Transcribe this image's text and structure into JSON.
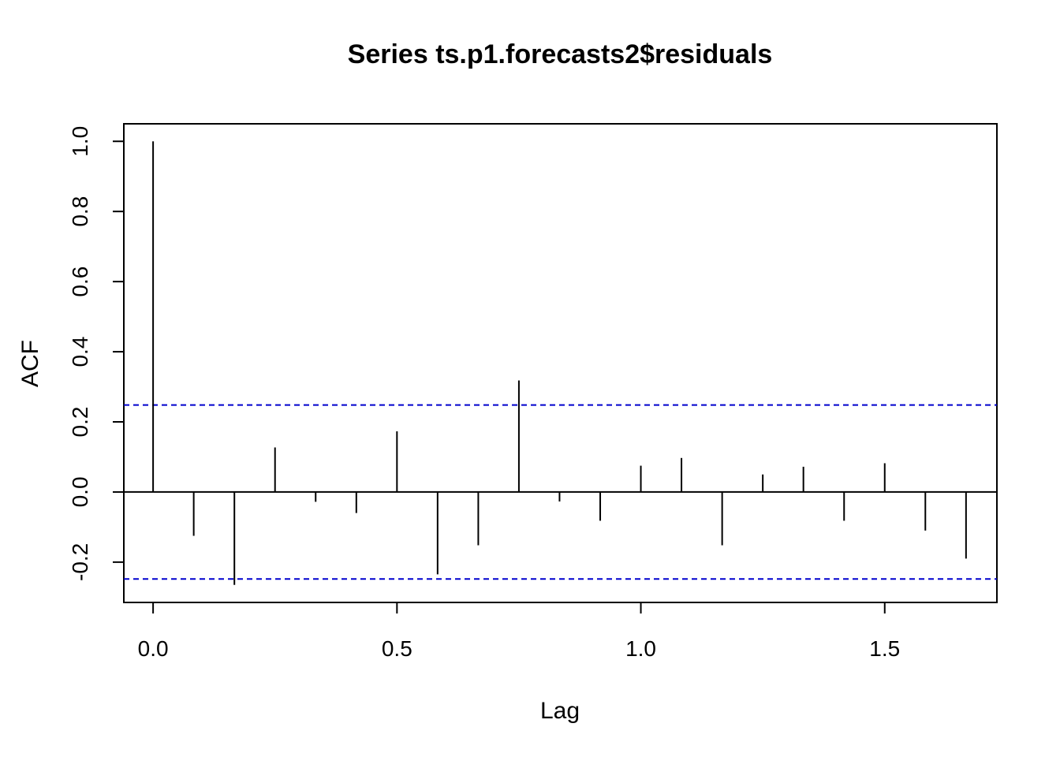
{
  "chart_data": {
    "type": "bar",
    "title": "Series  ts.p1.forecasts2$residuals",
    "xlabel": "Lag",
    "ylabel": "ACF",
    "xlim": [
      -0.06,
      1.73
    ],
    "ylim": [
      -0.315,
      1.05
    ],
    "x_ticks": [
      {
        "value": 0.0,
        "label": "0.0"
      },
      {
        "value": 0.5,
        "label": "0.5"
      },
      {
        "value": 1.0,
        "label": "1.0"
      },
      {
        "value": 1.5,
        "label": "1.5"
      }
    ],
    "y_ticks": [
      {
        "value": -0.2,
        "label": "-0.2"
      },
      {
        "value": 0.0,
        "label": "0.0"
      },
      {
        "value": 0.2,
        "label": "0.2"
      },
      {
        "value": 0.4,
        "label": "0.4"
      },
      {
        "value": 0.6,
        "label": "0.6"
      },
      {
        "value": 0.8,
        "label": "0.8"
      },
      {
        "value": 1.0,
        "label": "1.0"
      }
    ],
    "lags": [
      0,
      0.0833,
      0.1667,
      0.25,
      0.3333,
      0.4167,
      0.5,
      0.5833,
      0.6667,
      0.75,
      0.8333,
      0.9167,
      1.0,
      1.0833,
      1.1667,
      1.25,
      1.3333,
      1.4167,
      1.5,
      1.5833,
      1.6667
    ],
    "values": [
      1.0,
      -0.125,
      -0.265,
      0.127,
      -0.028,
      -0.06,
      0.173,
      -0.235,
      -0.152,
      0.318,
      -0.027,
      -0.082,
      0.075,
      0.097,
      -0.152,
      0.05,
      0.072,
      -0.082,
      0.082,
      -0.11,
      -0.19
    ],
    "confidence_bounds": [
      0.248,
      -0.248
    ],
    "colors": {
      "spike": "#000000",
      "bounds": "#0000cd",
      "zero_line": "#000000",
      "frame": "#000000"
    },
    "grid": false,
    "legend": "none"
  }
}
